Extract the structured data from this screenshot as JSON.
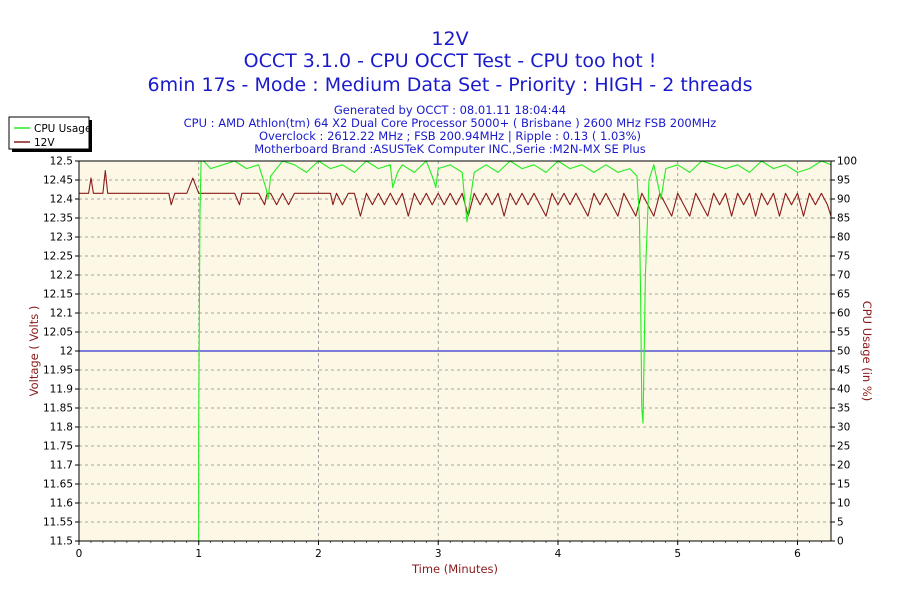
{
  "chart_data": {
    "type": "line",
    "title": "12V",
    "subtitle_lines": [
      "OCCT 3.1.0 - CPU OCCT Test - CPU too hot !",
      "6min 17s - Mode : Medium Data Set - Priority : HIGH - 2 threads"
    ],
    "info_lines": [
      "Generated by OCCT : 08.01.11 18:04:44",
      "CPU : AMD Athlon(tm) 64 X2 Dual Core Processor 5000+ ( Brisbane ) 2600 MHz FSB 200MHz",
      "Overclock : 2612.22 MHz ; FSB 200.94MHz | Ripple : 0.13 ( 1.03%)",
      "Motherboard Brand :ASUSTeK Computer INC.,Serie :M2N-MX SE Plus"
    ],
    "xlabel": "Time (Minutes)",
    "ylabel": "Voltage ( Volts )",
    "y2label": "CPU Usage (in %)",
    "xlim": [
      0,
      6.28
    ],
    "ylim": [
      11.5,
      12.5
    ],
    "y2lim": [
      0,
      100
    ],
    "x_ticks": [
      "0",
      "1",
      "2",
      "3",
      "4",
      "5",
      "6"
    ],
    "y_ticks": [
      "11.5",
      "11.55",
      "11.6",
      "11.65",
      "11.7",
      "11.75",
      "11.8",
      "11.85",
      "11.9",
      "11.95",
      "12",
      "12.05",
      "12.1",
      "12.15",
      "12.2",
      "12.25",
      "12.3",
      "12.35",
      "12.4",
      "12.45",
      "12.5"
    ],
    "y2_ticks": [
      "0",
      "5",
      "10",
      "15",
      "20",
      "25",
      "30",
      "35",
      "40",
      "45",
      "50",
      "55",
      "60",
      "65",
      "70",
      "75",
      "80",
      "85",
      "90",
      "95",
      "100"
    ],
    "grid": true,
    "legend_position": "top-left",
    "reference_line": {
      "axis": "y",
      "value": 12.0,
      "color": "#0000cc"
    },
    "series": [
      {
        "name": "CPU Usage",
        "axis": "right",
        "color": "#22ee22",
        "x": [
          1.0,
          1.0,
          1.01,
          1.02,
          1.04,
          1.1,
          1.2,
          1.3,
          1.4,
          1.5,
          1.56,
          1.58,
          1.6,
          1.7,
          1.8,
          1.9,
          2.0,
          2.1,
          2.2,
          2.3,
          2.4,
          2.5,
          2.6,
          2.62,
          2.66,
          2.7,
          2.8,
          2.9,
          2.95,
          2.98,
          3.0,
          3.1,
          3.2,
          3.22,
          3.24,
          3.3,
          3.4,
          3.5,
          3.6,
          3.7,
          3.8,
          3.9,
          4.0,
          4.1,
          4.2,
          4.3,
          4.4,
          4.5,
          4.6,
          4.66,
          4.68,
          4.69,
          4.7,
          4.71,
          4.72,
          4.73,
          4.76,
          4.8,
          4.84,
          4.86,
          4.9,
          5.0,
          5.1,
          5.2,
          5.3,
          5.4,
          5.5,
          5.6,
          5.7,
          5.8,
          5.9,
          6.0,
          6.1,
          6.2,
          6.28
        ],
        "values": [
          0,
          30,
          85,
          100,
          100,
          98,
          99,
          100,
          98,
          99,
          93,
          90,
          96,
          100,
          99,
          97,
          100,
          98,
          99,
          97,
          100,
          98,
          99,
          93,
          97,
          99,
          97,
          100,
          96,
          93,
          98,
          99,
          97,
          90,
          84,
          97,
          99,
          97,
          100,
          98,
          99,
          97,
          100,
          98,
          99,
          97,
          99,
          97,
          98,
          96,
          85,
          65,
          35,
          31,
          50,
          70,
          95,
          99,
          93,
          90,
          98,
          99,
          97,
          100,
          99,
          98,
          99,
          97,
          100,
          98,
          99,
          97,
          98,
          100,
          99
        ]
      },
      {
        "name": "12V",
        "axis": "left",
        "color": "#8b1a1a",
        "x": [
          0.0,
          0.08,
          0.1,
          0.12,
          0.14,
          0.2,
          0.22,
          0.24,
          0.26,
          0.3,
          0.5,
          0.75,
          0.77,
          0.8,
          0.86,
          0.9,
          0.95,
          1.0,
          1.1,
          1.2,
          1.3,
          1.34,
          1.36,
          1.4,
          1.5,
          1.55,
          1.57,
          1.6,
          1.65,
          1.7,
          1.75,
          1.8,
          1.85,
          1.9,
          2.0,
          2.1,
          2.12,
          2.15,
          2.2,
          2.25,
          2.3,
          2.35,
          2.4,
          2.45,
          2.5,
          2.55,
          2.6,
          2.65,
          2.7,
          2.75,
          2.8,
          2.85,
          2.9,
          2.95,
          3.0,
          3.05,
          3.1,
          3.15,
          3.2,
          3.25,
          3.3,
          3.35,
          3.4,
          3.45,
          3.5,
          3.55,
          3.6,
          3.65,
          3.7,
          3.75,
          3.8,
          3.85,
          3.9,
          3.95,
          4.0,
          4.05,
          4.1,
          4.15,
          4.2,
          4.25,
          4.3,
          4.35,
          4.4,
          4.45,
          4.5,
          4.55,
          4.6,
          4.65,
          4.7,
          4.75,
          4.8,
          4.85,
          4.9,
          4.95,
          5.0,
          5.05,
          5.1,
          5.15,
          5.2,
          5.25,
          5.3,
          5.35,
          5.4,
          5.45,
          5.5,
          5.55,
          5.6,
          5.65,
          5.7,
          5.75,
          5.8,
          5.85,
          5.9,
          5.95,
          6.0,
          6.05,
          6.1,
          6.15,
          6.2,
          6.25,
          6.28
        ],
        "values": [
          12.415,
          12.415,
          12.455,
          12.415,
          12.415,
          12.415,
          12.475,
          12.415,
          12.415,
          12.415,
          12.415,
          12.415,
          12.385,
          12.415,
          12.415,
          12.415,
          12.455,
          12.415,
          12.415,
          12.415,
          12.415,
          12.385,
          12.415,
          12.415,
          12.415,
          12.385,
          12.415,
          12.415,
          12.385,
          12.415,
          12.385,
          12.415,
          12.415,
          12.415,
          12.415,
          12.415,
          12.385,
          12.415,
          12.385,
          12.415,
          12.415,
          12.355,
          12.415,
          12.385,
          12.415,
          12.385,
          12.415,
          12.385,
          12.415,
          12.355,
          12.415,
          12.385,
          12.415,
          12.385,
          12.415,
          12.385,
          12.415,
          12.385,
          12.415,
          12.355,
          12.415,
          12.385,
          12.415,
          12.385,
          12.415,
          12.355,
          12.415,
          12.385,
          12.415,
          12.385,
          12.415,
          12.385,
          12.355,
          12.415,
          12.385,
          12.415,
          12.385,
          12.415,
          12.385,
          12.355,
          12.415,
          12.385,
          12.415,
          12.385,
          12.355,
          12.415,
          12.385,
          12.355,
          12.415,
          12.385,
          12.355,
          12.415,
          12.385,
          12.355,
          12.415,
          12.385,
          12.355,
          12.415,
          12.385,
          12.355,
          12.415,
          12.385,
          12.415,
          12.355,
          12.415,
          12.385,
          12.415,
          12.355,
          12.415,
          12.385,
          12.415,
          12.355,
          12.415,
          12.385,
          12.415,
          12.355,
          12.415,
          12.385,
          12.415,
          12.385,
          12.355
        ]
      }
    ]
  }
}
